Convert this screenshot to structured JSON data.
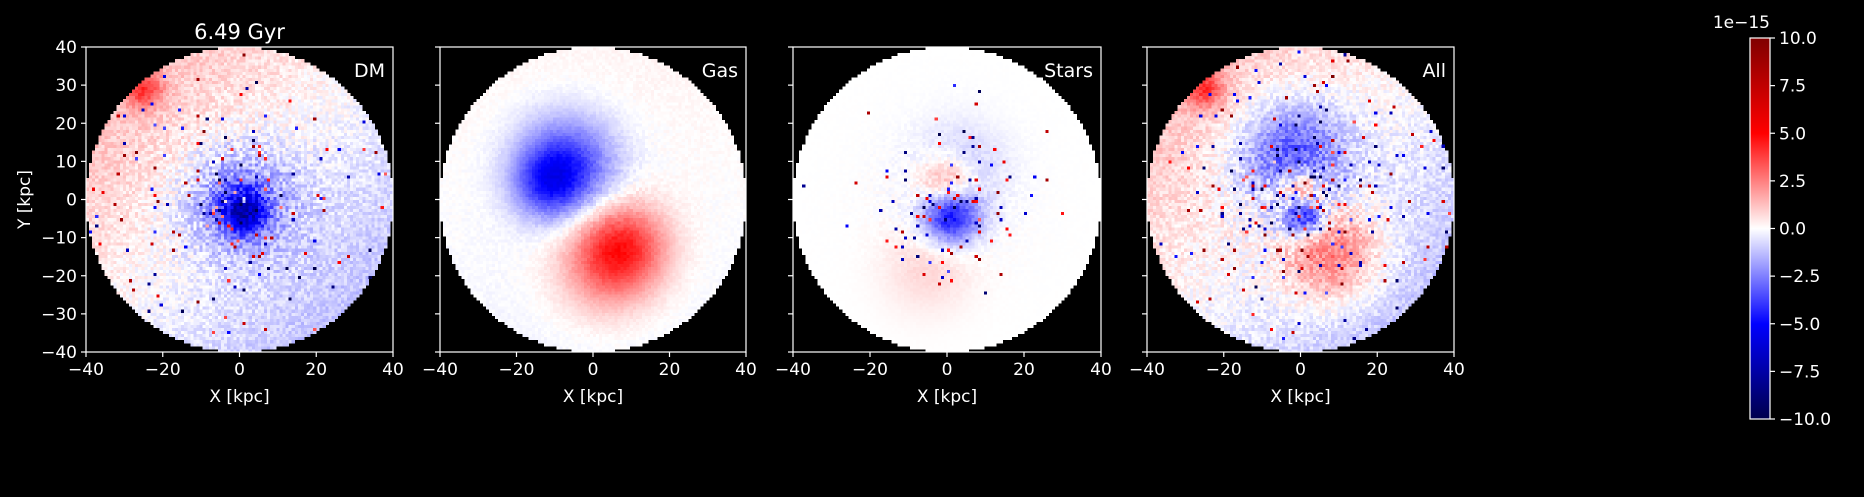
{
  "colors": {
    "background": "#000000",
    "foreground": "#ffffff",
    "cmap_low": "#00004c",
    "cmap_mid": "#ffffff",
    "cmap_high": "#800000"
  },
  "figure_title": "6.49 Gyr",
  "chart_data": [
    {
      "type": "heatmap",
      "panel_label": "DM",
      "title": "6.49 Gyr",
      "xlabel": "X [kpc]",
      "ylabel": "Y [kpc]",
      "xlim": [
        -40,
        40
      ],
      "ylim": [
        -40,
        40
      ],
      "xticks": [
        -40,
        -20,
        0,
        20,
        40
      ],
      "yticks": [
        -40,
        -30,
        -20,
        -10,
        0,
        10,
        20,
        30,
        40
      ],
      "ytick_labels_visible": true,
      "grid": false,
      "map_radius_kpc": 40,
      "features": [
        {
          "x": -25,
          "y": 29,
          "r": 3.5,
          "value": 3.0
        },
        {
          "x": 0,
          "y": 0,
          "r": 10,
          "value": -2.5
        },
        {
          "x": 1,
          "y": -3,
          "r": 4,
          "value": -5.0
        }
      ],
      "gradient": {
        "dir": [
          -1,
          1
        ],
        "scale": 1.2
      },
      "noise_amp": 1.5,
      "speckle_fraction": 0.04
    },
    {
      "type": "heatmap",
      "panel_label": "Gas",
      "xlabel": "X [kpc]",
      "ylabel": "",
      "xlim": [
        -40,
        40
      ],
      "ylim": [
        -40,
        40
      ],
      "xticks": [
        -40,
        -20,
        0,
        20,
        40
      ],
      "yticks": [
        -40,
        -30,
        -20,
        -10,
        0,
        10,
        20,
        30,
        40
      ],
      "ytick_labels_visible": false,
      "grid": false,
      "map_radius_kpc": 40,
      "features": [
        {
          "x": -7,
          "y": 9,
          "r": 9,
          "value": -4.0
        },
        {
          "x": -12,
          "y": 4,
          "r": 6,
          "value": -2.5
        },
        {
          "x": 8,
          "y": -12,
          "r": 8,
          "value": 3.5
        },
        {
          "x": 3,
          "y": -18,
          "r": 9,
          "value": 2.0
        }
      ],
      "gradient": {
        "dir": [
          0,
          1
        ],
        "scale": 0.2
      },
      "noise_amp": 0.4,
      "speckle_fraction": 0.0
    },
    {
      "type": "heatmap",
      "panel_label": "Stars",
      "xlabel": "X [kpc]",
      "ylabel": "",
      "xlim": [
        -40,
        40
      ],
      "ylim": [
        -40,
        40
      ],
      "xticks": [
        -40,
        -20,
        0,
        20,
        40
      ],
      "yticks": [
        -40,
        -30,
        -20,
        -10,
        0,
        10,
        20,
        30,
        40
      ],
      "ytick_labels_visible": false,
      "grid": false,
      "map_radius_kpc": 40,
      "features": [
        {
          "x": 0,
          "y": 4,
          "r": 5,
          "value": 3.0
        },
        {
          "x": 1,
          "y": -4,
          "r": 5,
          "value": -5.0
        },
        {
          "x": 3,
          "y": 8,
          "r": 8,
          "value": -1.2
        },
        {
          "x": -5,
          "y": -18,
          "r": 8,
          "value": 0.8
        }
      ],
      "gradient": {
        "dir": [
          0,
          1
        ],
        "scale": 0.0
      },
      "noise_amp": 0.6,
      "speckle_fraction": 0.05,
      "core_radius_kpc": 16
    },
    {
      "type": "heatmap",
      "panel_label": "All",
      "xlabel": "X [kpc]",
      "ylabel": "",
      "xlim": [
        -40,
        40
      ],
      "ylim": [
        -40,
        40
      ],
      "xticks": [
        -40,
        -20,
        0,
        20,
        40
      ],
      "yticks": [
        -40,
        -30,
        -20,
        -10,
        0,
        10,
        20,
        30,
        40
      ],
      "ytick_labels_visible": false,
      "grid": false,
      "map_radius_kpc": 40,
      "features": [
        {
          "x": -25,
          "y": 29,
          "r": 3.5,
          "value": 3.0
        },
        {
          "x": -2,
          "y": 12,
          "r": 10,
          "value": -3.5
        },
        {
          "x": 0,
          "y": 2,
          "r": 4,
          "value": 4.0
        },
        {
          "x": 1,
          "y": -4,
          "r": 4,
          "value": -5.0
        },
        {
          "x": 8,
          "y": -14,
          "r": 9,
          "value": 3.0
        }
      ],
      "gradient": {
        "dir": [
          -1,
          1
        ],
        "scale": 1.2
      },
      "noise_amp": 1.5,
      "speckle_fraction": 0.05
    }
  ],
  "colorbar": {
    "offset_label": "1e−15",
    "vmin": -10.0,
    "vmax": 10.0,
    "ticks": [
      10.0,
      7.5,
      5.0,
      2.5,
      0.0,
      -2.5,
      -5.0,
      -7.5,
      -10.0
    ],
    "tick_labels": [
      "10.0",
      "7.5",
      "5.0",
      "2.5",
      "0.0",
      "−2.5",
      "−5.0",
      "−7.5",
      "−10.0"
    ],
    "colormap": "seismic"
  }
}
